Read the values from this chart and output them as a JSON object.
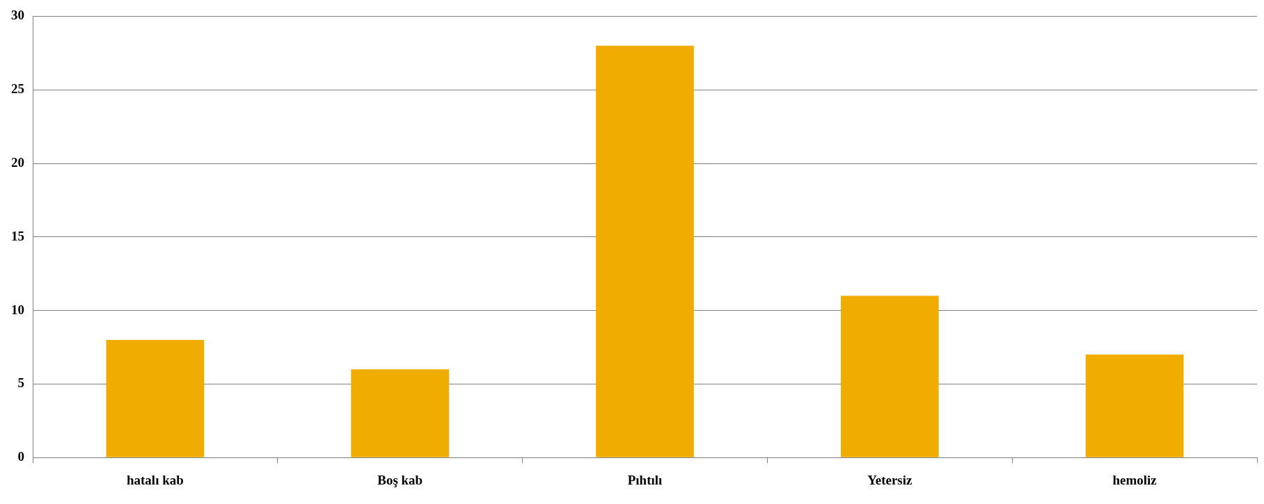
{
  "chart_data": {
    "type": "bar",
    "categories": [
      "hatalı kab",
      "Boş kab",
      "Pıhtılı",
      "Yetersiz",
      "hemoliz"
    ],
    "values": [
      8,
      6,
      28,
      11,
      7
    ],
    "color": "#f0ad00",
    "ylim": [
      0,
      30
    ],
    "yticks": [
      0,
      5,
      10,
      15,
      20,
      25,
      30
    ],
    "grid": "y"
  }
}
